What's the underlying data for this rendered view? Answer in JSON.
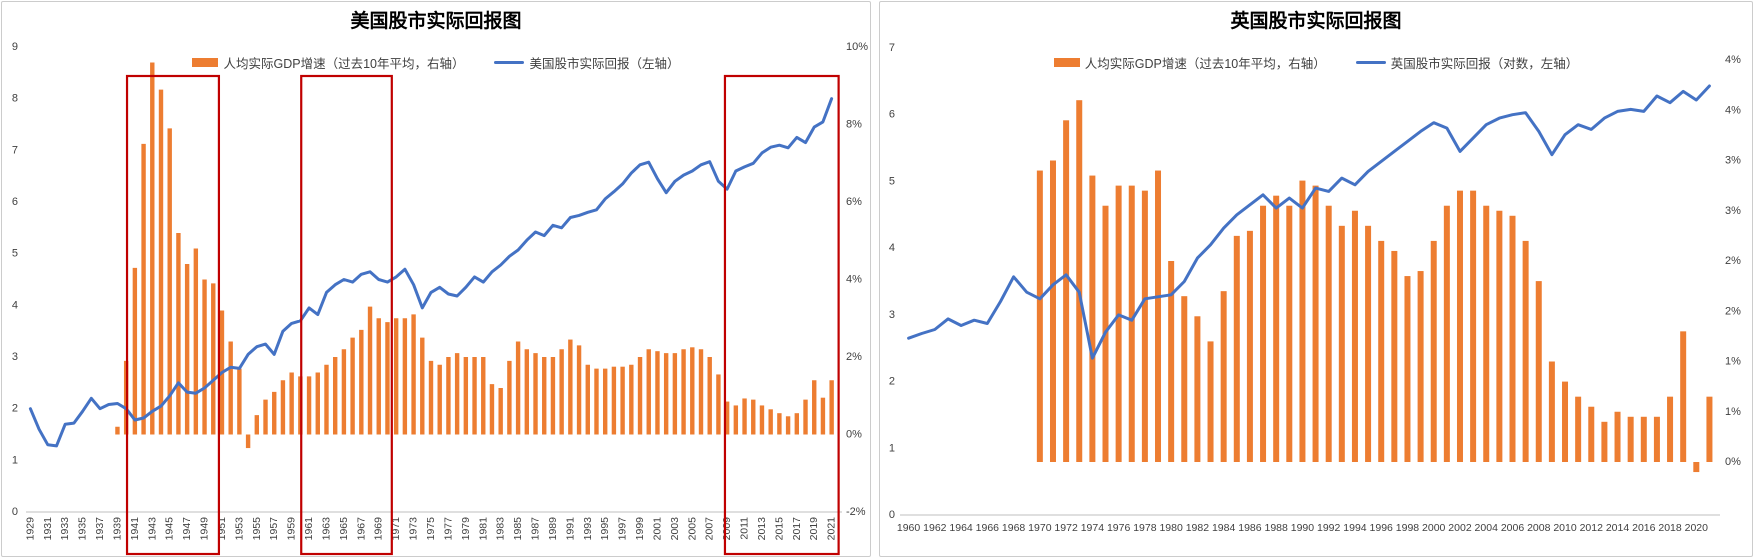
{
  "colors": {
    "bar": "#ED7D31",
    "line": "#4472C4",
    "highlight_box": "#C00000",
    "axis_text": "#404040",
    "axis_line": "#BFBFBF",
    "title_text": "#000000",
    "background": "#FFFFFF"
  },
  "chart_data": [
    {
      "type": "combo-bar-line",
      "title": "美国股市实际回报图",
      "legend_position": "top",
      "grid": false,
      "x_label_rotated": true,
      "years": [
        1929,
        1930,
        1931,
        1932,
        1933,
        1934,
        1935,
        1936,
        1937,
        1938,
        1939,
        1940,
        1941,
        1942,
        1943,
        1944,
        1945,
        1946,
        1947,
        1948,
        1949,
        1950,
        1951,
        1952,
        1953,
        1954,
        1955,
        1956,
        1957,
        1958,
        1959,
        1960,
        1961,
        1962,
        1963,
        1964,
        1965,
        1966,
        1967,
        1968,
        1969,
        1970,
        1971,
        1972,
        1973,
        1974,
        1975,
        1976,
        1977,
        1978,
        1979,
        1980,
        1981,
        1982,
        1983,
        1984,
        1985,
        1986,
        1987,
        1988,
        1989,
        1990,
        1991,
        1992,
        1993,
        1994,
        1995,
        1996,
        1997,
        1998,
        1999,
        2000,
        2001,
        2002,
        2003,
        2004,
        2005,
        2006,
        2007,
        2008,
        2009,
        2010,
        2011,
        2012,
        2013,
        2014,
        2015,
        2016,
        2017,
        2018,
        2019,
        2020,
        2021
      ],
      "x_tick_labels": [
        "1929",
        "1931",
        "1933",
        "1935",
        "1937",
        "1939",
        "1941",
        "1943",
        "1945",
        "1947",
        "1949",
        "1951",
        "1953",
        "1955",
        "1957",
        "1959",
        "1961",
        "1963",
        "1965",
        "1967",
        "1969",
        "1971",
        "1973",
        "1975",
        "1977",
        "1979",
        "1981",
        "1983",
        "1985",
        "1987",
        "1989",
        "1991",
        "1993",
        "1995",
        "1997",
        "1999",
        "2001",
        "2003",
        "2005",
        "2007",
        "2009",
        "2011",
        "2013",
        "2015",
        "2017",
        "2019",
        "2021"
      ],
      "left_axis": {
        "min": 0,
        "max": 9,
        "tick_labels": [
          "9",
          "8",
          "7",
          "6",
          "5",
          "4",
          "3",
          "2",
          "1",
          "0"
        ]
      },
      "right_axis": {
        "min": -2,
        "max": 10,
        "tick_labels": [
          "10%",
          "8%",
          "6%",
          "4%",
          "2%",
          "0%",
          "-2%"
        ]
      },
      "series": [
        {
          "name": "人均实际GDP增速（过去10年平均，右轴）",
          "type": "bar",
          "axis": "right",
          "unit": "%",
          "values": [
            null,
            null,
            null,
            null,
            null,
            null,
            null,
            null,
            null,
            null,
            0.2,
            1.9,
            4.3,
            7.5,
            9.6,
            8.9,
            7.9,
            5.2,
            4.4,
            4.8,
            4.0,
            3.9,
            3.2,
            2.4,
            1.7,
            -0.35,
            0.5,
            0.9,
            1.1,
            1.4,
            1.6,
            1.5,
            1.5,
            1.6,
            1.8,
            2.0,
            2.2,
            2.5,
            2.7,
            3.3,
            3.0,
            2.9,
            3.0,
            3.0,
            3.1,
            2.5,
            1.9,
            1.8,
            2.0,
            2.1,
            2.0,
            2.0,
            2.0,
            1.3,
            1.2,
            1.9,
            2.4,
            2.2,
            2.1,
            2.0,
            2.0,
            2.2,
            2.45,
            2.3,
            1.8,
            1.7,
            1.7,
            1.75,
            1.75,
            1.8,
            2.0,
            2.2,
            2.15,
            2.1,
            2.1,
            2.2,
            2.25,
            2.2,
            2.0,
            1.55,
            0.85,
            0.75,
            0.93,
            0.9,
            0.75,
            0.65,
            0.55,
            0.47,
            0.55,
            0.9,
            1.4,
            0.95,
            1.4
          ]
        },
        {
          "name": "美国股市实际回报（左轴）",
          "type": "line",
          "axis": "left",
          "values": [
            2.0,
            1.6,
            1.3,
            1.28,
            1.7,
            1.72,
            1.95,
            2.2,
            2.0,
            2.08,
            2.1,
            2.0,
            1.78,
            1.82,
            1.95,
            2.05,
            2.25,
            2.5,
            2.32,
            2.3,
            2.4,
            2.55,
            2.7,
            2.8,
            2.78,
            3.05,
            3.2,
            3.25,
            3.05,
            3.5,
            3.65,
            3.7,
            3.95,
            3.82,
            4.25,
            4.4,
            4.5,
            4.45,
            4.6,
            4.65,
            4.5,
            4.45,
            4.55,
            4.7,
            4.4,
            3.95,
            4.25,
            4.35,
            4.22,
            4.18,
            4.35,
            4.55,
            4.45,
            4.65,
            4.78,
            4.95,
            5.07,
            5.26,
            5.42,
            5.35,
            5.55,
            5.5,
            5.7,
            5.74,
            5.8,
            5.85,
            6.06,
            6.2,
            6.35,
            6.56,
            6.72,
            6.77,
            6.45,
            6.18,
            6.4,
            6.52,
            6.6,
            6.72,
            6.78,
            6.4,
            6.25,
            6.6,
            6.68,
            6.75,
            6.95,
            7.06,
            7.1,
            7.05,
            7.25,
            7.15,
            7.45,
            7.55,
            8.0
          ]
        }
      ],
      "highlight_boxes": [
        {
          "from_year": 1940.1,
          "to_year": 1950.65
        },
        {
          "from_year": 1960.1,
          "to_year": 1970.5
        },
        {
          "from_year": 2008.75,
          "to_year": 2021.8
        }
      ]
    },
    {
      "type": "combo-bar-line",
      "title": "英国股市实际回报图",
      "legend_position": "top",
      "grid": false,
      "x_label_rotated": false,
      "years": [
        1960,
        1961,
        1962,
        1963,
        1964,
        1965,
        1966,
        1967,
        1968,
        1969,
        1970,
        1971,
        1972,
        1973,
        1974,
        1975,
        1976,
        1977,
        1978,
        1979,
        1980,
        1981,
        1982,
        1983,
        1984,
        1985,
        1986,
        1987,
        1988,
        1989,
        1990,
        1991,
        1992,
        1993,
        1994,
        1995,
        1996,
        1997,
        1998,
        1999,
        2000,
        2001,
        2002,
        2003,
        2004,
        2005,
        2006,
        2007,
        2008,
        2009,
        2010,
        2011,
        2012,
        2013,
        2014,
        2015,
        2016,
        2017,
        2018,
        2019,
        2020,
        2021
      ],
      "x_tick_labels": [
        "1960",
        "1962",
        "1964",
        "1966",
        "1968",
        "1970",
        "1972",
        "1974",
        "1976",
        "1978",
        "1980",
        "1982",
        "1984",
        "1986",
        "1988",
        "1990",
        "1992",
        "1994",
        "1996",
        "1998",
        "2000",
        "2002",
        "2004",
        "2006",
        "2008",
        "2010",
        "2012",
        "2014",
        "2016",
        "2018",
        "2020"
      ],
      "left_axis": {
        "min": 0,
        "max": 7,
        "tick_labels": [
          "7",
          "6",
          "5",
          "4",
          "3",
          "2",
          "1",
          "0"
        ]
      },
      "right_axis": {
        "min": 0,
        "max": 4,
        "tick_labels": [
          "4%",
          "4%",
          "3%",
          "3%",
          "2%",
          "2%",
          "1%",
          "1%",
          "0%"
        ]
      },
      "series": [
        {
          "name": "人均实际GDP增速（过去10年平均，右轴）",
          "type": "bar",
          "axis": "right",
          "unit": "%",
          "values": [
            null,
            null,
            null,
            null,
            null,
            null,
            null,
            null,
            null,
            null,
            2.9,
            3.0,
            3.4,
            3.6,
            2.85,
            2.55,
            2.75,
            2.75,
            2.7,
            2.9,
            2.0,
            1.65,
            1.45,
            1.2,
            1.7,
            2.25,
            2.3,
            2.55,
            2.65,
            2.55,
            2.8,
            2.75,
            2.55,
            2.35,
            2.5,
            2.35,
            2.2,
            2.1,
            1.85,
            1.9,
            2.2,
            2.55,
            2.7,
            2.7,
            2.55,
            2.5,
            2.45,
            2.2,
            1.8,
            1.0,
            0.8,
            0.65,
            0.55,
            0.4,
            0.5,
            0.45,
            0.45,
            0.45,
            0.65,
            1.3,
            -0.1,
            0.65
          ]
        },
        {
          "name": "英国股市实际回报（对数，左轴）",
          "type": "line",
          "axis": "left",
          "values": [
            2.65,
            2.72,
            2.78,
            2.94,
            2.84,
            2.92,
            2.87,
            3.2,
            3.57,
            3.34,
            3.24,
            3.45,
            3.6,
            3.34,
            2.35,
            2.74,
            3.0,
            2.92,
            3.24,
            3.27,
            3.3,
            3.5,
            3.85,
            4.05,
            4.3,
            4.5,
            4.65,
            4.8,
            4.6,
            4.75,
            4.6,
            4.9,
            4.85,
            5.05,
            4.95,
            5.15,
            5.3,
            5.45,
            5.6,
            5.75,
            5.88,
            5.8,
            5.45,
            5.65,
            5.85,
            5.95,
            6.0,
            6.03,
            5.75,
            5.4,
            5.7,
            5.85,
            5.78,
            5.95,
            6.05,
            6.08,
            6.05,
            6.28,
            6.18,
            6.35,
            6.22,
            6.43
          ]
        }
      ],
      "highlight_boxes": []
    }
  ]
}
